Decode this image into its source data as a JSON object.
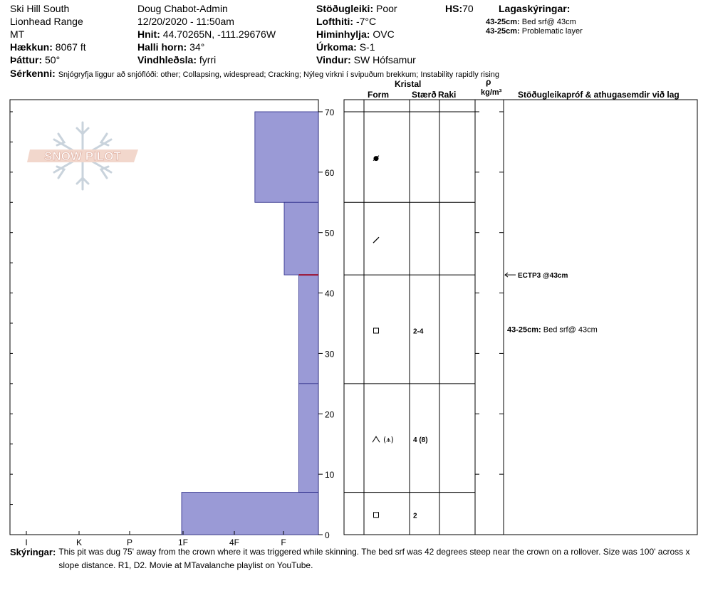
{
  "header": {
    "location": "Ski Hill South",
    "range": "Lionhead Range",
    "state": "MT",
    "elevation_label": "Hækkun:",
    "elevation": "8067 ft",
    "aspect_label": "Þáttur:",
    "aspect": "50°",
    "observer": "Doug Chabot-Admin",
    "datetime": "12/20/2020 - 11:50am",
    "coords_label": "Hnit:",
    "coords": "44.70265N, -111.29676W",
    "slope_label": "Halli horn:",
    "slope": "34°",
    "wind_loading_label": "Vindhleðsla:",
    "wind_loading": "fyrri",
    "stability_label": "Stöðugleiki:",
    "stability": "Poor",
    "air_temp_label": "Lofthiti:",
    "air_temp": "-7°C",
    "sky_label": "Himinhylja:",
    "sky": "OVC",
    "precip_label": "Úrkoma:",
    "precip": "S-1",
    "wind_label": "Vindur:",
    "wind": "SW Hófsamur",
    "hs_label": "HS:",
    "hs": "70",
    "legend_title": "Lagaskýringar:",
    "legend": [
      {
        "key": "43-25cm:",
        "text": "Bed srf@ 43cm"
      },
      {
        "key": "43-25cm:",
        "text": "Problematic layer"
      }
    ],
    "features_label": "Sérkenni:",
    "features": "Snjógryfja liggur að snjóflóði: other;  Collapsing, widespread;  Cracking;  Nýleg virkni í svipuðum brekkum;  Instability rapidly rising"
  },
  "logo": {
    "text": "SNOW PILOT"
  },
  "columns": {
    "crystal": "Kristal",
    "form": "Form",
    "size": "Stærð",
    "moisture": "Raki",
    "rho": "ρ",
    "density_unit": "kg/m³",
    "tests": "Stöðugleikapróf & athugasemdir við lag"
  },
  "chart_data": {
    "type": "bar",
    "orientation": "horizontal",
    "description_axis_y": "height above ground (cm)",
    "y_ticks": [
      0,
      10,
      20,
      30,
      40,
      50,
      60,
      70
    ],
    "ylim": [
      0,
      72
    ],
    "hardness_ticks": [
      "I",
      "K",
      "P",
      "1F",
      "4F",
      "F"
    ],
    "hardness_scale": [
      "F",
      "4F",
      "1F",
      "P",
      "K",
      "I"
    ],
    "bar_color": "#9a9ad6",
    "layers": [
      {
        "top": 70,
        "bottom": 55,
        "hardness": "4F-",
        "hardness_index": 1.3,
        "form_icon": "rounding-faceted",
        "size": "",
        "moisture": ""
      },
      {
        "top": 55,
        "bottom": 43,
        "hardness": "F+",
        "hardness_index": 0.7,
        "form_icon": "decomposing",
        "size": "",
        "moisture": ""
      },
      {
        "top": 43,
        "bottom": 25,
        "hardness": "F",
        "hardness_index": 0.4,
        "form_icon": "faceted",
        "size": "2-4",
        "moisture": ""
      },
      {
        "top": 25,
        "bottom": 7,
        "hardness": "F",
        "hardness_index": 0.4,
        "form_icon": "depth-hoar",
        "form_text": "(⩚)",
        "size": "4 (8)",
        "moisture": ""
      },
      {
        "top": 7,
        "bottom": 0,
        "hardness": "1F",
        "hardness_index": 2.8,
        "form_icon": "faceted",
        "size": "2",
        "moisture": ""
      }
    ],
    "markers": [
      {
        "depth": 43,
        "label": "ECTP3 @43cm"
      }
    ],
    "layer_comments": [
      {
        "depth_mid": 34,
        "key": "43-25cm:",
        "text": "Bed srf@ 43cm"
      }
    ]
  },
  "footer": {
    "label": "Skýringar:",
    "text": "This pit was dug 75' away from the crown where it was triggered while skinning. The bed srf was 42 degrees steep near the crown on a rollover. Size was 100' across x slope distance. R1, D2. Movie at MTavalanche playlist on YouTube."
  }
}
